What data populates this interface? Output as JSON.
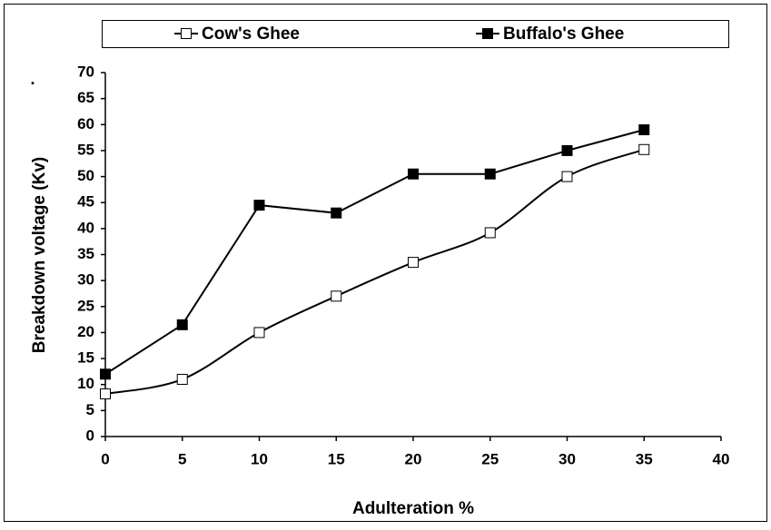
{
  "chart_data": {
    "type": "line",
    "annotation": ".",
    "xlabel": "Adulteration %",
    "ylabel": "Breakdown voltage (Kv)",
    "x": [
      0,
      5,
      10,
      15,
      20,
      25,
      30,
      35
    ],
    "xlim": [
      0,
      40
    ],
    "xticks": [
      0,
      5,
      10,
      15,
      20,
      25,
      30,
      35,
      40
    ],
    "ylim": [
      0,
      70
    ],
    "yticks": [
      0,
      5,
      10,
      15,
      20,
      25,
      30,
      35,
      40,
      45,
      50,
      55,
      60,
      65,
      70
    ],
    "grid": false,
    "legend": "top",
    "series": [
      {
        "name": "Cow's Ghee",
        "color": "#000000",
        "marker_fill": "#ffffff",
        "smooth": true,
        "values": [
          8.2,
          11,
          20,
          27,
          33.5,
          39.2,
          50,
          55.2
        ]
      },
      {
        "name": "Buffalo's Ghee",
        "color": "#000000",
        "marker_fill": "#000000",
        "smooth": false,
        "values": [
          12,
          21.5,
          44.5,
          43,
          50.5,
          50.5,
          55,
          59
        ]
      }
    ]
  }
}
